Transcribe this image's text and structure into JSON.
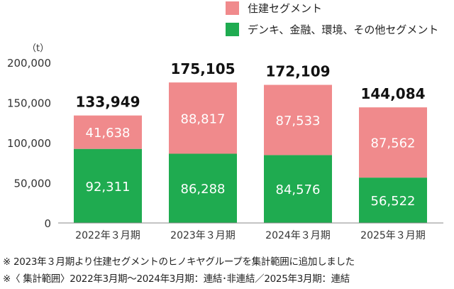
{
  "chart_data": {
    "type": "bar",
    "stacked": true,
    "unit_label": "（t）",
    "categories": [
      "2022年３月期",
      "2023年３月期",
      "2024年３月期",
      "2025年３月期"
    ],
    "series": [
      {
        "name": "デンキ、金融、環境、その他セグメント",
        "color": "#1fab50",
        "values": [
          92311,
          86288,
          84576,
          56522
        ],
        "labels": [
          "92,311",
          "86,288",
          "84,576",
          "56,522"
        ]
      },
      {
        "name": "住建セグメント",
        "color": "#f08a8c",
        "values": [
          41638,
          88817,
          87533,
          87562
        ],
        "labels": [
          "41,638",
          "88,817",
          "87,533",
          "87,562"
        ]
      }
    ],
    "totals": [
      "133,949",
      "175,105",
      "172,109",
      "144,084"
    ],
    "yticks": [
      "0",
      "50,000",
      "100,000",
      "150,000",
      "200,000"
    ],
    "ytick_values": [
      0,
      50000,
      100000,
      150000,
      200000
    ],
    "ylim": [
      0,
      200000
    ],
    "grid": false,
    "legend_position": "top-right"
  },
  "notes": [
    "※ 2023年３月期より住建セグメントのヒノキヤグループを集計範囲に追加しました",
    "※〈 集計範囲〉2022年3月期～2024年3月期：連結･非連結／2025年3月期：連結"
  ]
}
